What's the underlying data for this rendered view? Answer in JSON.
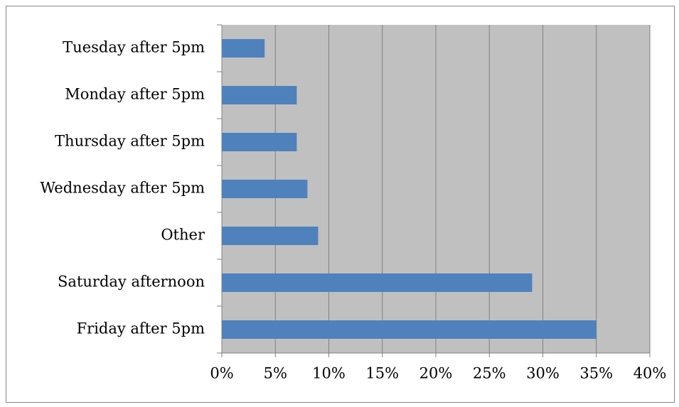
{
  "chart_data": {
    "type": "bar",
    "orientation": "horizontal",
    "categories": [
      "Tuesday after 5pm",
      "Monday after 5pm",
      "Thursday after 5pm",
      "Wednesday after 5pm",
      "Other",
      "Saturday afternoon",
      "Friday after 5pm"
    ],
    "values": [
      4,
      7,
      7,
      8,
      9,
      29,
      35
    ],
    "color": "#4f81bd",
    "xlim": [
      0,
      40
    ],
    "xticks": [
      {
        "value": 0,
        "label": "0%"
      },
      {
        "value": 5,
        "label": "5%"
      },
      {
        "value": 10,
        "label": "10%"
      },
      {
        "value": 15,
        "label": "15%"
      },
      {
        "value": 20,
        "label": "20%"
      },
      {
        "value": 25,
        "label": "25%"
      },
      {
        "value": 30,
        "label": "30%"
      },
      {
        "value": 35,
        "label": "35%"
      },
      {
        "value": 40,
        "label": "40%"
      }
    ],
    "grid": true
  }
}
